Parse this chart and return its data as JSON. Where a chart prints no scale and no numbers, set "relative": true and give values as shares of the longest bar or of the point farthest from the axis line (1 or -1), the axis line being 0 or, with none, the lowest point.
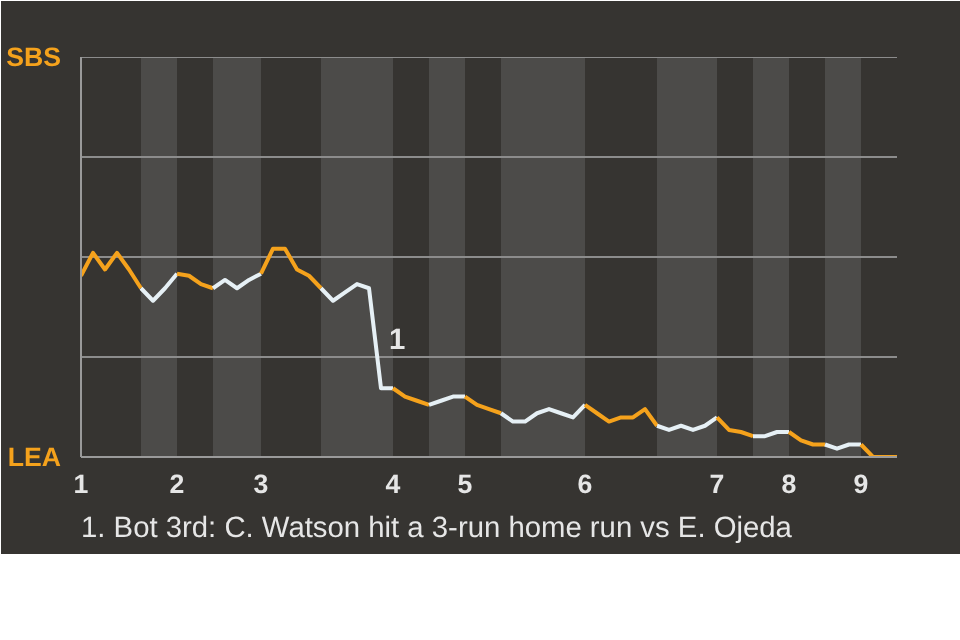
{
  "chart_data": {
    "type": "line",
    "relative": true,
    "categories": [
      "1",
      null,
      null,
      null,
      null,
      null,
      null,
      null,
      "2",
      null,
      null,
      null,
      null,
      null,
      null,
      "3",
      null,
      null,
      null,
      null,
      null,
      null,
      null,
      null,
      null,
      null,
      "4",
      null,
      null,
      null,
      null,
      null,
      "5",
      null,
      null,
      null,
      null,
      null,
      null,
      null,
      null,
      null,
      "6",
      null,
      null,
      null,
      null,
      null,
      null,
      null,
      null,
      null,
      null,
      "7",
      null,
      null,
      null,
      null,
      null,
      "8",
      null,
      null,
      null,
      null,
      null,
      "9",
      null,
      null,
      null
    ],
    "ref_lines": [
      {
        "axis": "y",
        "value": 0.48,
        "color": "#8c8c8c"
      },
      {
        "axis": "y",
        "value": 0.96,
        "color": "#8c8c8c"
      },
      {
        "axis": "y",
        "value": 1.44,
        "color": "#8c8c8c"
      },
      {
        "axis": "y",
        "value": 1.92,
        "color": "#8c8c8c"
      }
    ],
    "marker": "none",
    "line_style": "solid",
    "series": [
      {
        "color": "#f5a21c",
        "values": [
          0.87,
          0.98,
          0.9,
          0.98,
          0.9,
          0.81,
          null,
          null,
          null,
          null,
          null,
          null,
          null,
          null,
          null,
          null,
          null,
          null,
          null,
          null,
          null,
          null,
          null,
          null,
          null,
          null,
          null,
          null,
          null,
          null,
          null,
          null,
          null,
          null,
          null,
          null,
          null,
          null,
          null,
          null,
          null,
          null,
          null,
          null,
          null,
          null,
          null,
          null,
          null,
          null,
          null,
          null,
          null,
          null,
          null,
          null,
          null,
          null,
          null,
          null,
          null,
          null,
          null,
          null,
          null,
          null,
          null,
          null,
          null
        ]
      },
      {
        "color": "#e6f0f5",
        "values": [
          null,
          null,
          null,
          null,
          null,
          0.81,
          0.75,
          0.81,
          0.88,
          null,
          null,
          null,
          null,
          null,
          null,
          null,
          null,
          null,
          null,
          null,
          null,
          null,
          null,
          null,
          null,
          null,
          null,
          null,
          null,
          null,
          null,
          null,
          null,
          null,
          null,
          null,
          null,
          null,
          null,
          null,
          null,
          null,
          null,
          null,
          null,
          null,
          null,
          null,
          null,
          null,
          null,
          null,
          null,
          null,
          null,
          null,
          null,
          null,
          null,
          null,
          null,
          null,
          null,
          null,
          null,
          null,
          null,
          null,
          null
        ]
      },
      {
        "color": "#f5a21c",
        "values": [
          null,
          null,
          null,
          null,
          null,
          null,
          null,
          null,
          0.88,
          0.87,
          0.83,
          0.81,
          null,
          null,
          null,
          null,
          null,
          null,
          null,
          null,
          null,
          null,
          null,
          null,
          null,
          null,
          null,
          null,
          null,
          null,
          null,
          null,
          null,
          null,
          null,
          null,
          null,
          null,
          null,
          null,
          null,
          null,
          null,
          null,
          null,
          null,
          null,
          null,
          null,
          null,
          null,
          null,
          null,
          null,
          null,
          null,
          null,
          null,
          null,
          null,
          null,
          null,
          null,
          null,
          null,
          null,
          null,
          null,
          null
        ]
      },
      {
        "color": "#e6f0f5",
        "values": [
          null,
          null,
          null,
          null,
          null,
          null,
          null,
          null,
          null,
          null,
          null,
          0.81,
          0.85,
          0.81,
          0.85,
          0.88,
          null,
          null,
          null,
          null,
          null,
          null,
          null,
          null,
          null,
          null,
          null,
          null,
          null,
          null,
          null,
          null,
          null,
          null,
          null,
          null,
          null,
          null,
          null,
          null,
          null,
          null,
          null,
          null,
          null,
          null,
          null,
          null,
          null,
          null,
          null,
          null,
          null,
          null,
          null,
          null,
          null,
          null,
          null,
          null,
          null,
          null,
          null,
          null,
          null,
          null,
          null,
          null,
          null
        ]
      },
      {
        "color": "#f5a21c",
        "values": [
          null,
          null,
          null,
          null,
          null,
          null,
          null,
          null,
          null,
          null,
          null,
          null,
          null,
          null,
          null,
          0.88,
          1,
          1,
          0.9,
          0.87,
          0.81,
          null,
          null,
          null,
          null,
          null,
          null,
          null,
          null,
          null,
          null,
          null,
          null,
          null,
          null,
          null,
          null,
          null,
          null,
          null,
          null,
          null,
          null,
          null,
          null,
          null,
          null,
          null,
          null,
          null,
          null,
          null,
          null,
          null,
          null,
          null,
          null,
          null,
          null,
          null,
          null,
          null,
          null,
          null,
          null,
          null,
          null,
          null,
          null
        ]
      },
      {
        "color": "#e6f0f5",
        "values": [
          null,
          null,
          null,
          null,
          null,
          null,
          null,
          null,
          null,
          null,
          null,
          null,
          null,
          null,
          null,
          null,
          null,
          null,
          null,
          null,
          0.81,
          0.75,
          0.79,
          0.83,
          0.81,
          0.33,
          0.33,
          null,
          null,
          null,
          null,
          null,
          null,
          null,
          null,
          null,
          null,
          null,
          null,
          null,
          null,
          null,
          null,
          null,
          null,
          null,
          null,
          null,
          null,
          null,
          null,
          null,
          null,
          null,
          null,
          null,
          null,
          null,
          null,
          null,
          null,
          null,
          null,
          null,
          null,
          null,
          null,
          null,
          null
        ]
      },
      {
        "color": "#f5a21c",
        "values": [
          null,
          null,
          null,
          null,
          null,
          null,
          null,
          null,
          null,
          null,
          null,
          null,
          null,
          null,
          null,
          null,
          null,
          null,
          null,
          null,
          null,
          null,
          null,
          null,
          null,
          null,
          0.33,
          0.29,
          0.27,
          0.25,
          null,
          null,
          null,
          null,
          null,
          null,
          null,
          null,
          null,
          null,
          null,
          null,
          null,
          null,
          null,
          null,
          null,
          null,
          null,
          null,
          null,
          null,
          null,
          null,
          null,
          null,
          null,
          null,
          null,
          null,
          null,
          null,
          null,
          null,
          null,
          null,
          null,
          null,
          null
        ]
      },
      {
        "color": "#e6f0f5",
        "values": [
          null,
          null,
          null,
          null,
          null,
          null,
          null,
          null,
          null,
          null,
          null,
          null,
          null,
          null,
          null,
          null,
          null,
          null,
          null,
          null,
          null,
          null,
          null,
          null,
          null,
          null,
          null,
          null,
          null,
          0.25,
          0.27,
          0.29,
          0.29,
          null,
          null,
          null,
          null,
          null,
          null,
          null,
          null,
          null,
          null,
          null,
          null,
          null,
          null,
          null,
          null,
          null,
          null,
          null,
          null,
          null,
          null,
          null,
          null,
          null,
          null,
          null,
          null,
          null,
          null,
          null,
          null,
          null,
          null,
          null,
          null
        ]
      },
      {
        "color": "#f5a21c",
        "values": [
          null,
          null,
          null,
          null,
          null,
          null,
          null,
          null,
          null,
          null,
          null,
          null,
          null,
          null,
          null,
          null,
          null,
          null,
          null,
          null,
          null,
          null,
          null,
          null,
          null,
          null,
          null,
          null,
          null,
          null,
          null,
          null,
          0.29,
          0.25,
          0.23,
          0.21,
          null,
          null,
          null,
          null,
          null,
          null,
          null,
          null,
          null,
          null,
          null,
          null,
          null,
          null,
          null,
          null,
          null,
          null,
          null,
          null,
          null,
          null,
          null,
          null,
          null,
          null,
          null,
          null,
          null,
          null,
          null,
          null,
          null
        ]
      },
      {
        "color": "#e6f0f5",
        "values": [
          null,
          null,
          null,
          null,
          null,
          null,
          null,
          null,
          null,
          null,
          null,
          null,
          null,
          null,
          null,
          null,
          null,
          null,
          null,
          null,
          null,
          null,
          null,
          null,
          null,
          null,
          null,
          null,
          null,
          null,
          null,
          null,
          null,
          null,
          null,
          0.21,
          0.17,
          0.17,
          0.21,
          0.23,
          0.21,
          0.19,
          0.25,
          null,
          null,
          null,
          null,
          null,
          null,
          null,
          null,
          null,
          null,
          null,
          null,
          null,
          null,
          null,
          null,
          null,
          null,
          null,
          null,
          null,
          null,
          null,
          null,
          null,
          null
        ]
      },
      {
        "color": "#f5a21c",
        "values": [
          null,
          null,
          null,
          null,
          null,
          null,
          null,
          null,
          null,
          null,
          null,
          null,
          null,
          null,
          null,
          null,
          null,
          null,
          null,
          null,
          null,
          null,
          null,
          null,
          null,
          null,
          null,
          null,
          null,
          null,
          null,
          null,
          null,
          null,
          null,
          null,
          null,
          null,
          null,
          null,
          null,
          null,
          0.25,
          0.21,
          0.17,
          0.19,
          0.19,
          0.23,
          0.15,
          null,
          null,
          null,
          null,
          null,
          null,
          null,
          null,
          null,
          null,
          null,
          null,
          null,
          null,
          null,
          null,
          null,
          null,
          null,
          null
        ]
      },
      {
        "color": "#e6f0f5",
        "values": [
          null,
          null,
          null,
          null,
          null,
          null,
          null,
          null,
          null,
          null,
          null,
          null,
          null,
          null,
          null,
          null,
          null,
          null,
          null,
          null,
          null,
          null,
          null,
          null,
          null,
          null,
          null,
          null,
          null,
          null,
          null,
          null,
          null,
          null,
          null,
          null,
          null,
          null,
          null,
          null,
          null,
          null,
          null,
          null,
          null,
          null,
          null,
          null,
          0.15,
          0.13,
          0.15,
          0.13,
          0.15,
          0.19,
          null,
          null,
          null,
          null,
          null,
          null,
          null,
          null,
          null,
          null,
          null,
          null,
          null,
          null,
          null
        ]
      },
      {
        "color": "#f5a21c",
        "values": [
          null,
          null,
          null,
          null,
          null,
          null,
          null,
          null,
          null,
          null,
          null,
          null,
          null,
          null,
          null,
          null,
          null,
          null,
          null,
          null,
          null,
          null,
          null,
          null,
          null,
          null,
          null,
          null,
          null,
          null,
          null,
          null,
          null,
          null,
          null,
          null,
          null,
          null,
          null,
          null,
          null,
          null,
          null,
          null,
          null,
          null,
          null,
          null,
          null,
          null,
          null,
          null,
          null,
          0.19,
          0.13,
          0.12,
          0.1,
          null,
          null,
          null,
          null,
          null,
          null,
          null,
          null,
          null,
          null,
          null,
          null
        ]
      },
      {
        "color": "#e6f0f5",
        "values": [
          null,
          null,
          null,
          null,
          null,
          null,
          null,
          null,
          null,
          null,
          null,
          null,
          null,
          null,
          null,
          null,
          null,
          null,
          null,
          null,
          null,
          null,
          null,
          null,
          null,
          null,
          null,
          null,
          null,
          null,
          null,
          null,
          null,
          null,
          null,
          null,
          null,
          null,
          null,
          null,
          null,
          null,
          null,
          null,
          null,
          null,
          null,
          null,
          null,
          null,
          null,
          null,
          null,
          null,
          null,
          null,
          0.1,
          0.1,
          0.12,
          0.12,
          null,
          null,
          null,
          null,
          null,
          null,
          null,
          null,
          null
        ]
      },
      {
        "color": "#f5a21c",
        "values": [
          null,
          null,
          null,
          null,
          null,
          null,
          null,
          null,
          null,
          null,
          null,
          null,
          null,
          null,
          null,
          null,
          null,
          null,
          null,
          null,
          null,
          null,
          null,
          null,
          null,
          null,
          null,
          null,
          null,
          null,
          null,
          null,
          null,
          null,
          null,
          null,
          null,
          null,
          null,
          null,
          null,
          null,
          null,
          null,
          null,
          null,
          null,
          null,
          null,
          null,
          null,
          null,
          null,
          null,
          null,
          null,
          null,
          null,
          null,
          0.12,
          0.08,
          0.06,
          0.06,
          null,
          null,
          null,
          null,
          null,
          null
        ]
      },
      {
        "color": "#e6f0f5",
        "values": [
          null,
          null,
          null,
          null,
          null,
          null,
          null,
          null,
          null,
          null,
          null,
          null,
          null,
          null,
          null,
          null,
          null,
          null,
          null,
          null,
          null,
          null,
          null,
          null,
          null,
          null,
          null,
          null,
          null,
          null,
          null,
          null,
          null,
          null,
          null,
          null,
          null,
          null,
          null,
          null,
          null,
          null,
          null,
          null,
          null,
          null,
          null,
          null,
          null,
          null,
          null,
          null,
          null,
          null,
          null,
          null,
          null,
          null,
          null,
          null,
          null,
          null,
          0.06,
          0.04,
          0.06,
          0.06,
          null,
          null,
          null
        ]
      },
      {
        "color": "#f5a21c",
        "values": [
          null,
          null,
          null,
          null,
          null,
          null,
          null,
          null,
          null,
          null,
          null,
          null,
          null,
          null,
          null,
          null,
          null,
          null,
          null,
          null,
          null,
          null,
          null,
          null,
          null,
          null,
          null,
          null,
          null,
          null,
          null,
          null,
          null,
          null,
          null,
          null,
          null,
          null,
          null,
          null,
          null,
          null,
          null,
          null,
          null,
          null,
          null,
          null,
          null,
          null,
          null,
          null,
          null,
          null,
          null,
          null,
          null,
          null,
          null,
          null,
          null,
          null,
          null,
          null,
          null,
          0.06,
          0,
          0,
          0
        ]
      }
    ],
    "annotations": [
      "1",
      "SBS",
      "LEA",
      "1. Bot 3rd: C. Watson hit a 3-run home run vs E. Ojeda"
    ]
  }
}
